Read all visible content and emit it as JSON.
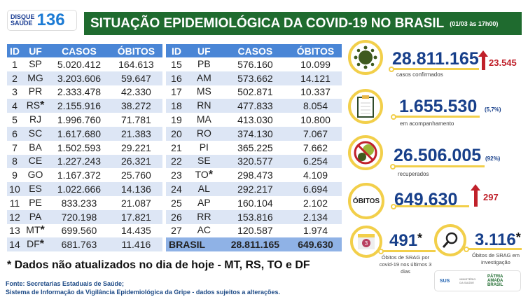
{
  "header": {
    "logo_line1": "DISQUE",
    "logo_line2": "SAÚDE",
    "logo_number": "136",
    "title": "SITUAÇÃO EPIDEMIOLÓGICA DA COVID-19 NO BRASIL",
    "date": "(01/03 às 17h00)"
  },
  "table": {
    "columns": [
      "ID",
      "UF",
      "CASOS",
      "ÓBITOS"
    ],
    "left": [
      [
        "1",
        "SP",
        "5.020.412",
        "164.613",
        ""
      ],
      [
        "2",
        "MG",
        "3.203.606",
        "59.647",
        ""
      ],
      [
        "3",
        "PR",
        "2.333.478",
        "42.330",
        ""
      ],
      [
        "4",
        "RS",
        "2.155.916",
        "38.272",
        "*"
      ],
      [
        "5",
        "RJ",
        "1.996.760",
        "71.781",
        ""
      ],
      [
        "6",
        "SC",
        "1.617.680",
        "21.383",
        ""
      ],
      [
        "7",
        "BA",
        "1.502.593",
        "29.221",
        ""
      ],
      [
        "8",
        "CE",
        "1.227.243",
        "26.321",
        ""
      ],
      [
        "9",
        "GO",
        "1.167.372",
        "25.760",
        ""
      ],
      [
        "10",
        "ES",
        "1.022.666",
        "14.136",
        ""
      ],
      [
        "11",
        "PE",
        "833.233",
        "21.087",
        ""
      ],
      [
        "12",
        "PA",
        "720.198",
        "17.821",
        ""
      ],
      [
        "13",
        "MT",
        "699.560",
        "14.435",
        "*"
      ],
      [
        "14",
        "DF",
        "681.763",
        "11.416",
        "*"
      ]
    ],
    "right": [
      [
        "15",
        "PB",
        "576.160",
        "10.099",
        ""
      ],
      [
        "16",
        "AM",
        "573.662",
        "14.121",
        ""
      ],
      [
        "17",
        "MS",
        "502.871",
        "10.337",
        ""
      ],
      [
        "18",
        "RN",
        "477.833",
        "8.054",
        ""
      ],
      [
        "19",
        "MA",
        "413.030",
        "10.800",
        ""
      ],
      [
        "20",
        "RO",
        "374.130",
        "7.067",
        ""
      ],
      [
        "21",
        "PI",
        "365.225",
        "7.662",
        ""
      ],
      [
        "22",
        "SE",
        "320.577",
        "6.254",
        ""
      ],
      [
        "23",
        "TO",
        "298.473",
        "4.109",
        "*"
      ],
      [
        "24",
        "AL",
        "292.217",
        "6.694",
        ""
      ],
      [
        "25",
        "AP",
        "160.104",
        "2.102",
        ""
      ],
      [
        "26",
        "RR",
        "153.816",
        "2.134",
        ""
      ],
      [
        "27",
        "AC",
        "120.587",
        "1.974",
        ""
      ]
    ],
    "total": {
      "label": "BRASIL",
      "casos": "28.811.165",
      "obitos": "649.630"
    }
  },
  "footnote": "* Dados não atualizados no dia de hoje - MT, RS, TO e DF",
  "sources": [
    "Fonte: Secretarias Estaduais de Saúde;",
    "Sistema de Informação da Vigilância Epidemiológica da Gripe - dados sujeitos a alterações."
  ],
  "stats": {
    "confirmed": {
      "value": "28.811.165",
      "label": "casos confirmados",
      "delta": "23.545",
      "icon": "virus-icon"
    },
    "monitoring": {
      "value": "1.655.530",
      "label": "em acompanhamento",
      "pct": "(5,7%)",
      "icon": "clipboard-icon"
    },
    "recovered": {
      "value": "26.506.005",
      "label": "recuperados",
      "pct": "(92%)",
      "icon": "no-virus-icon"
    },
    "deaths": {
      "badge": "ÓBITOS",
      "value": "649.630",
      "delta": "297"
    },
    "srag3": {
      "value": "491",
      "star": "*",
      "label": "Óbitos de SRAG por covid-19 nos últimos 3 dias",
      "icon": "calendar-icon",
      "cal": "3"
    },
    "sragInv": {
      "value": "3.116",
      "star": "*",
      "label": "Óbitos de SRAG em investigação",
      "icon": "magnifier-icon"
    }
  },
  "partners": {
    "sus": "SUS",
    "ministry": "MINISTÉRIO DA SAÚDE",
    "gov": "PÁTRIA AMADA BRASIL"
  },
  "colors": {
    "header_green": "#1f6b2f",
    "table_blue": "#4a86d6",
    "stat_blue": "#173f8a",
    "up_red": "#c0202a",
    "ring_yellow": "#f2cf4a"
  }
}
